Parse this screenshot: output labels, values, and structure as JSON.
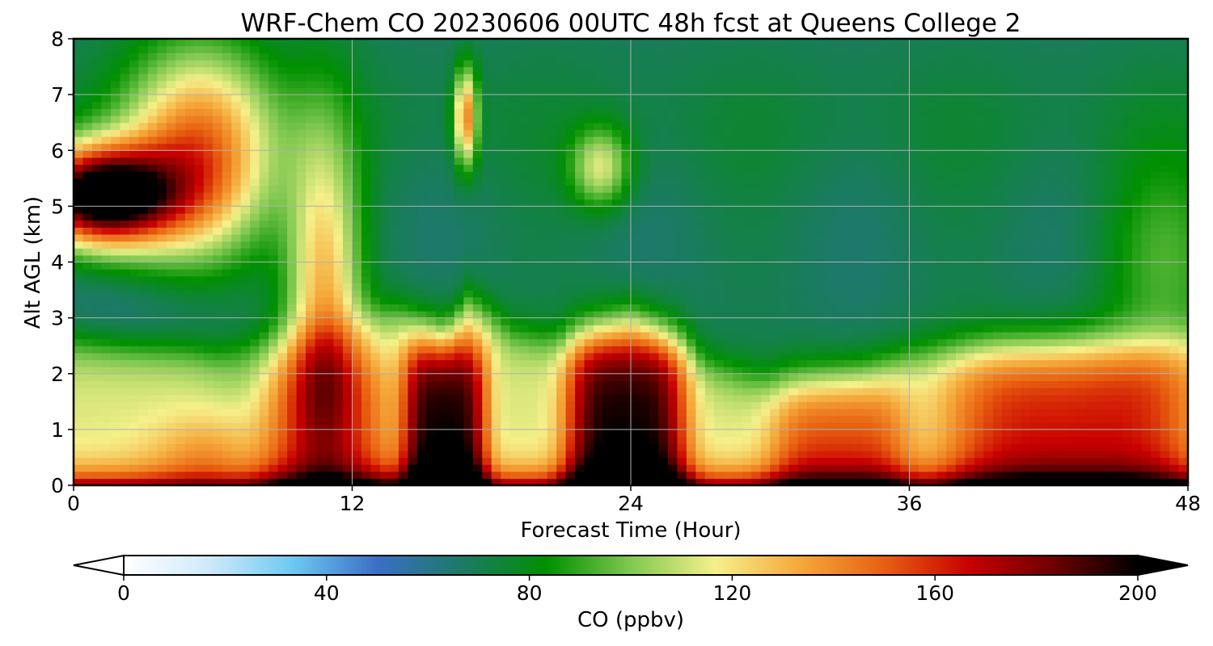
{
  "chart_data": {
    "type": "heatmap",
    "title": "WRF-Chem CO  20230606 00UTC 48h fcst at Queens College 2",
    "xlabel": "Forecast Time (Hour)",
    "ylabel": "Alt AGL (km)",
    "xlim": [
      0,
      48
    ],
    "ylim": [
      0,
      8
    ],
    "x_ticks": [
      0,
      12,
      24,
      36,
      48
    ],
    "y_ticks": [
      0,
      1,
      2,
      3,
      4,
      5,
      6,
      7,
      8
    ],
    "grid": true,
    "x_hours": [
      0,
      1,
      2,
      3,
      4,
      5,
      6,
      7,
      8,
      9,
      10,
      11,
      12,
      13,
      14,
      15,
      16,
      17,
      18,
      19,
      20,
      21,
      22,
      23,
      24,
      25,
      26,
      27,
      28,
      29,
      30,
      31,
      32,
      33,
      34,
      35,
      36,
      37,
      38,
      39,
      40,
      41,
      42,
      43,
      44,
      45,
      46,
      47,
      48
    ],
    "colorbar": {
      "label": "CO  (ppbv)",
      "ticks": [
        0,
        40,
        80,
        120,
        160,
        200
      ],
      "vmin": 0,
      "vmax": 200,
      "extend": "both",
      "colors": [
        "#ffffff",
        "#cfeafa",
        "#6ec8f2",
        "#3a6fc6",
        "#1c7a66",
        "#009000",
        "#80c850",
        "#f5f08a",
        "#f5a83a",
        "#e86010",
        "#c80000",
        "#6e0000",
        "#000000"
      ]
    }
  }
}
